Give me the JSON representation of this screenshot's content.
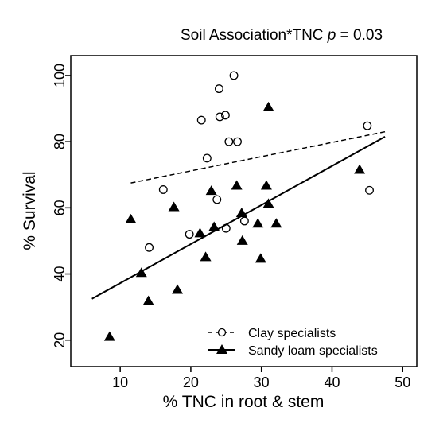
{
  "chart_data": {
    "type": "scatter",
    "title_parts": [
      "Soil Association*TNC ",
      "p",
      " = 0.03"
    ],
    "xlabel": "% TNC in root & stem",
    "ylabel": "% Survival",
    "xlim": [
      3,
      52
    ],
    "ylim": [
      12,
      106
    ],
    "xticks": [
      10,
      20,
      30,
      40,
      50
    ],
    "yticks": [
      20,
      40,
      60,
      80,
      100
    ],
    "grid": false,
    "legend_position": "bottom-right",
    "series": [
      {
        "name": "Clay specialists",
        "marker": "open-circle",
        "line": "dashed",
        "fit": {
          "x": [
            11.5,
            47.5
          ],
          "y": [
            67.5,
            83
          ]
        },
        "points": [
          {
            "x": 14.1,
            "y": 48
          },
          {
            "x": 16.1,
            "y": 65.5
          },
          {
            "x": 19.8,
            "y": 52
          },
          {
            "x": 21.5,
            "y": 86.5
          },
          {
            "x": 22.3,
            "y": 75
          },
          {
            "x": 23.7,
            "y": 62.5
          },
          {
            "x": 24.0,
            "y": 96
          },
          {
            "x": 24.1,
            "y": 87.5
          },
          {
            "x": 24.9,
            "y": 88
          },
          {
            "x": 25.4,
            "y": 80
          },
          {
            "x": 26.1,
            "y": 100
          },
          {
            "x": 26.6,
            "y": 80
          },
          {
            "x": 25.0,
            "y": 53.8
          },
          {
            "x": 27.6,
            "y": 56
          },
          {
            "x": 45.0,
            "y": 84.8
          },
          {
            "x": 45.3,
            "y": 65.3
          }
        ]
      },
      {
        "name": "Sandy loam specialists",
        "marker": "filled-triangle",
        "line": "solid",
        "fit": {
          "x": [
            6,
            47.5
          ],
          "y": [
            32.5,
            81.5
          ]
        },
        "points": [
          {
            "x": 8.5,
            "y": 21
          },
          {
            "x": 11.5,
            "y": 56.5
          },
          {
            "x": 13.0,
            "y": 40.3
          },
          {
            "x": 14.0,
            "y": 31.8
          },
          {
            "x": 17.6,
            "y": 60.2
          },
          {
            "x": 18.1,
            "y": 35.2
          },
          {
            "x": 21.3,
            "y": 52.3
          },
          {
            "x": 22.1,
            "y": 45.1
          },
          {
            "x": 22.9,
            "y": 65.1
          },
          {
            "x": 23.3,
            "y": 54.2
          },
          {
            "x": 26.5,
            "y": 66.7
          },
          {
            "x": 27.2,
            "y": 58.4
          },
          {
            "x": 27.3,
            "y": 50
          },
          {
            "x": 29.5,
            "y": 55.2
          },
          {
            "x": 29.9,
            "y": 44.6
          },
          {
            "x": 30.7,
            "y": 66.7
          },
          {
            "x": 31.0,
            "y": 61.2
          },
          {
            "x": 31.0,
            "y": 90.4
          },
          {
            "x": 32.1,
            "y": 55.2
          },
          {
            "x": 43.9,
            "y": 71.5
          }
        ]
      }
    ]
  }
}
